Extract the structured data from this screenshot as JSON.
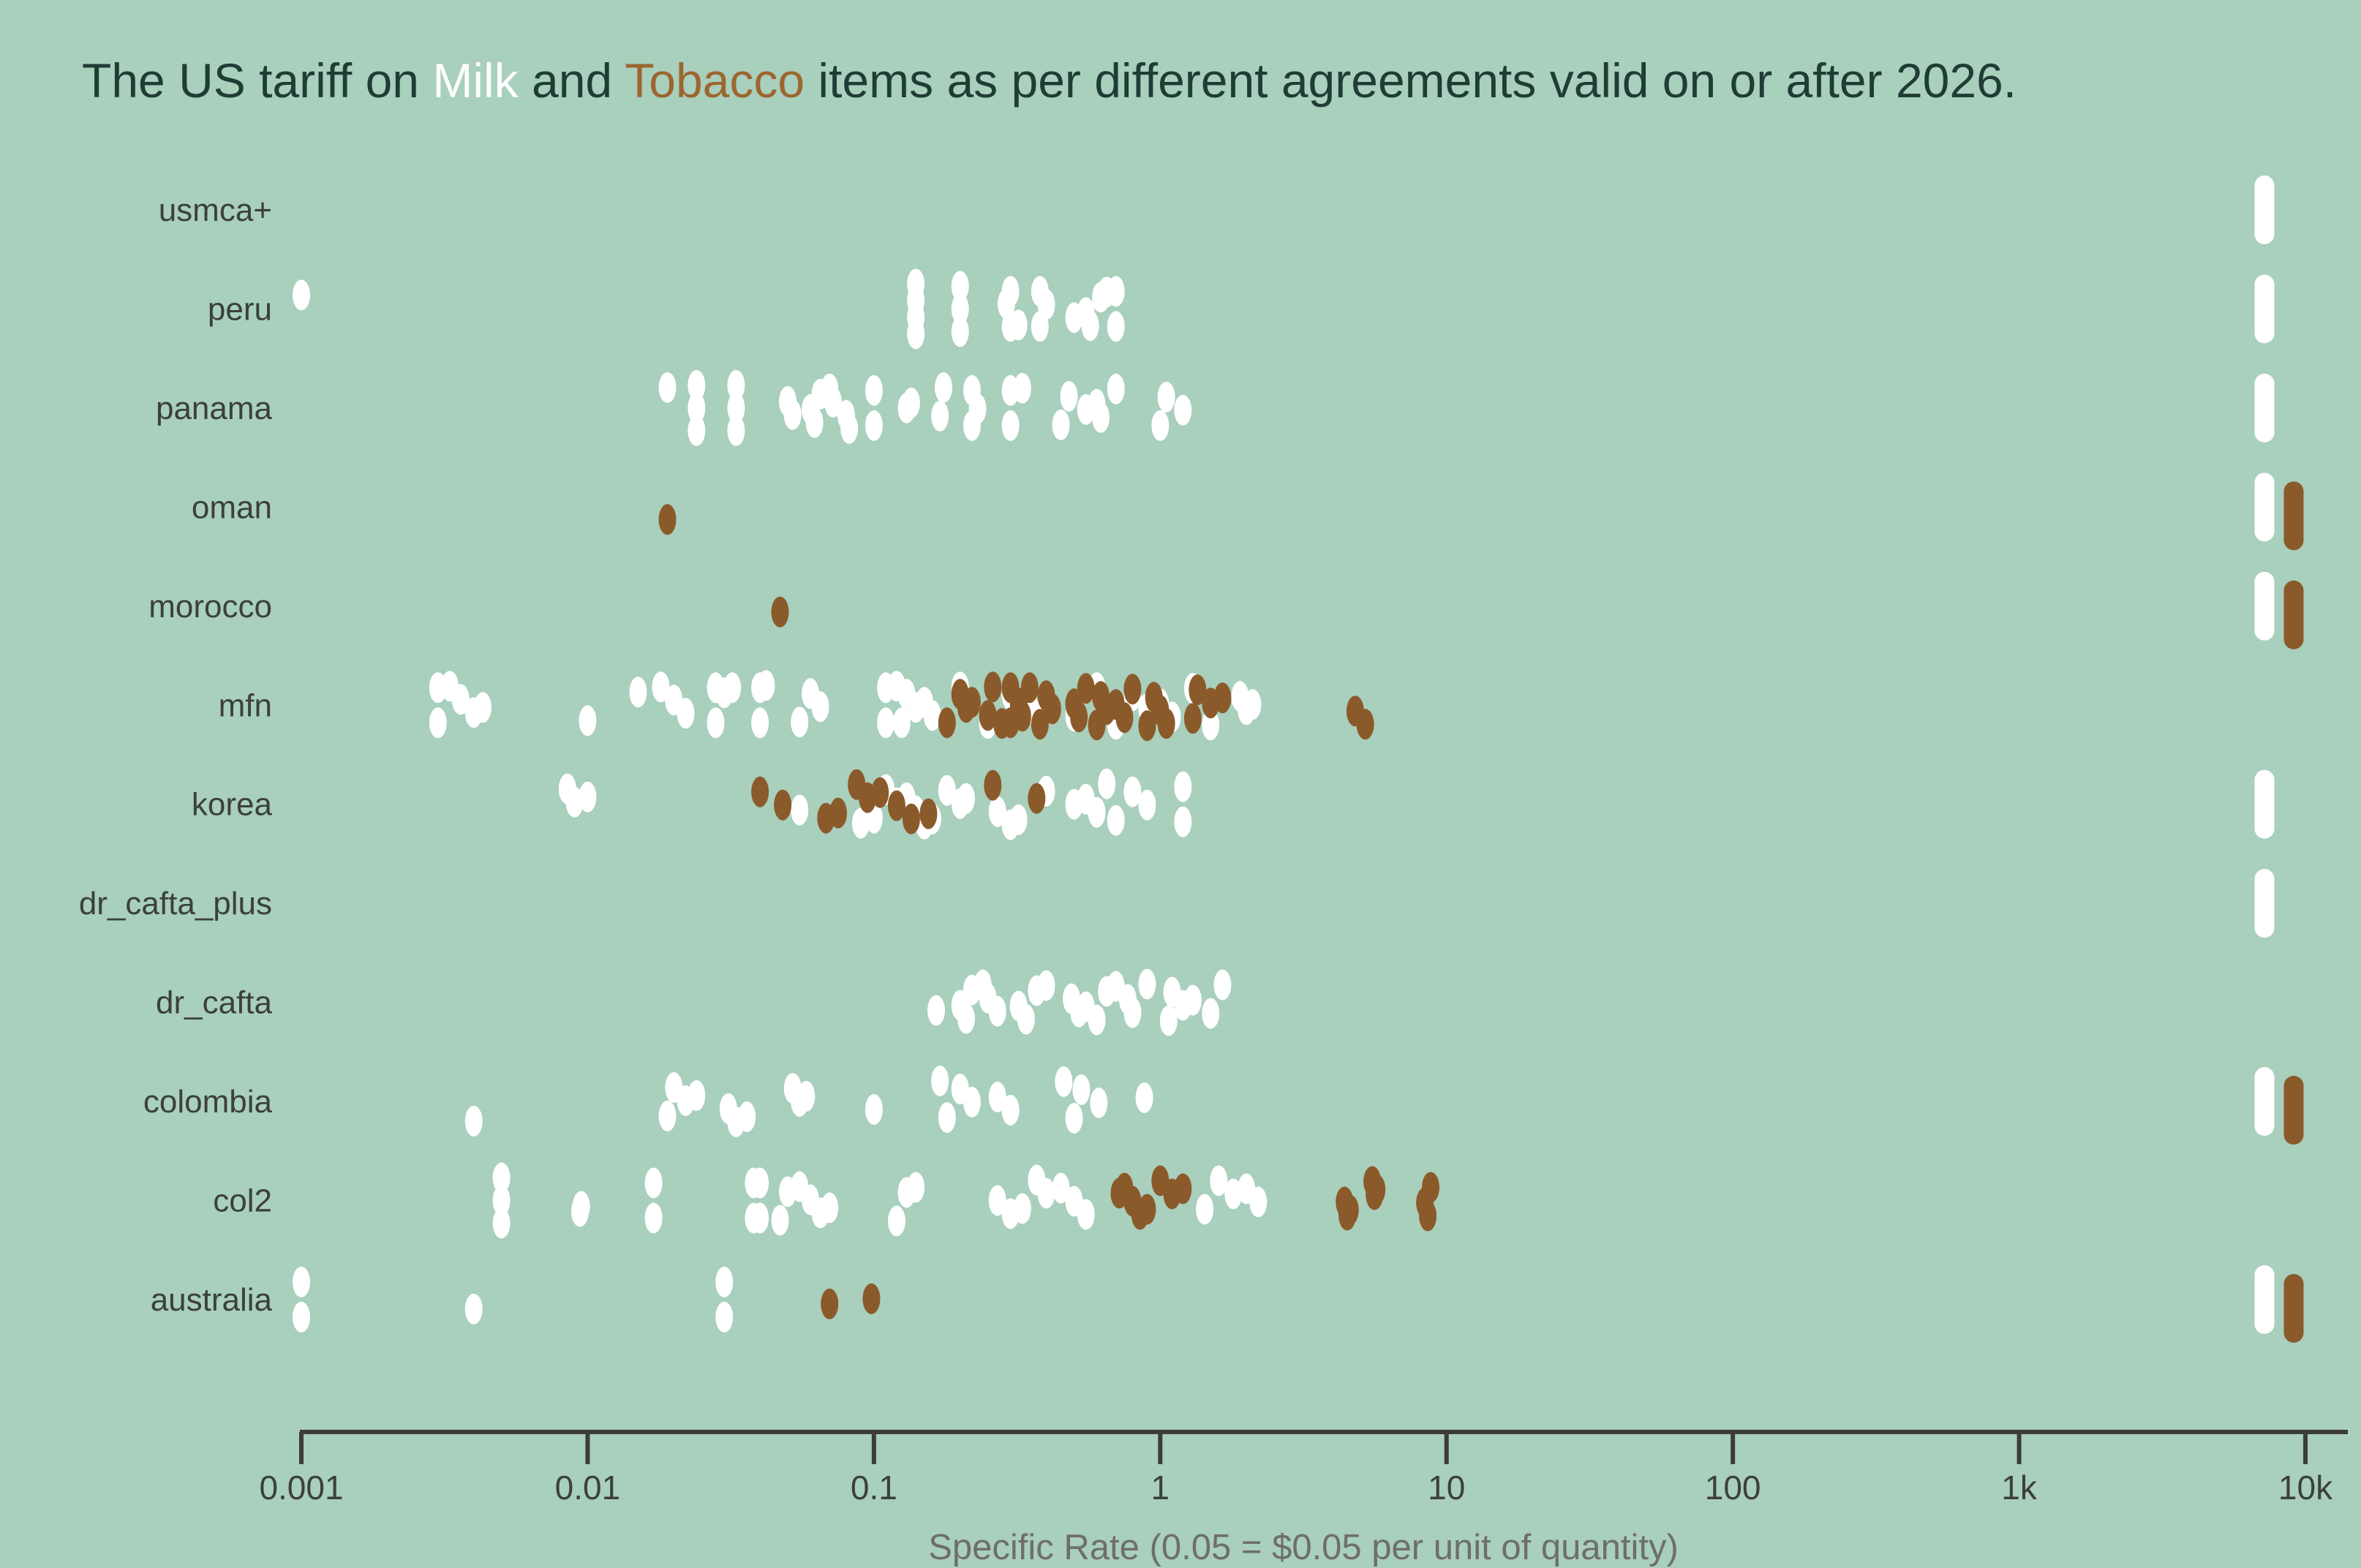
{
  "title": {
    "prefix": "The US tariff on ",
    "milk_word": "Milk",
    "connector": " and ",
    "tobacco_word": "Tobacco",
    "suffix": " items as per different agreements valid on or after 2026."
  },
  "colors": {
    "background": "#A9CFBD",
    "milk": "#FFFFFF",
    "tobacco": "#8B5A2B",
    "tobacco_title_word": "#9C6630",
    "milk_title_word": "#FFFFFF",
    "title_text": "#1F3C35",
    "axis_text": "#3B403D",
    "axis_line": "#3C3C3C",
    "axis_title_text": "#6E6E6E"
  },
  "chart_data": {
    "type": "scatter",
    "subtype": "horizontal_strip_plot",
    "x_scale": "log",
    "title": "The US tariff on Milk and Tobacco items as per different agreements valid on or after 2026.",
    "xlabel": "Specific Rate (0.05 = $0.05 per unit of quantity)",
    "ylabel": "",
    "grid": false,
    "legend_position": "none (series distinguished by color words in title)",
    "series_names": [
      "Milk",
      "Tobacco"
    ],
    "x_tick_values": [
      0.001,
      0.01,
      0.1,
      1,
      10,
      100,
      1000,
      10000
    ],
    "x_tick_labels": [
      "0.001",
      "0.01",
      "0.1",
      "1",
      "10",
      "100",
      "1k",
      "10k"
    ],
    "x_range": [
      0.001,
      13000
    ],
    "cap_note": "Rows flagged *_at_cap have a clipped pill-shaped cluster of many points at the right axis edge (~8000-10000).",
    "cap_value": 10000,
    "rows": [
      {
        "label": "usmca+",
        "milk": [],
        "tobacco": [],
        "milk_at_cap": true,
        "tobacco_at_cap": false
      },
      {
        "label": "peru",
        "milk": [
          0.001,
          0.14,
          0.14,
          0.14,
          0.14,
          0.2,
          0.2,
          0.2,
          0.29,
          0.3,
          0.3,
          0.32,
          0.38,
          0.38,
          0.4,
          0.5,
          0.55,
          0.57,
          0.62,
          0.65,
          0.7,
          0.7
        ],
        "tobacco": [],
        "milk_at_cap": true,
        "tobacco_at_cap": false
      },
      {
        "label": "panama",
        "milk": [
          0.019,
          0.024,
          0.024,
          0.024,
          0.033,
          0.033,
          0.033,
          0.05,
          0.052,
          0.06,
          0.062,
          0.065,
          0.07,
          0.072,
          0.08,
          0.082,
          0.1,
          0.1,
          0.13,
          0.135,
          0.17,
          0.175,
          0.22,
          0.22,
          0.23,
          0.3,
          0.3,
          0.33,
          0.45,
          0.48,
          0.55,
          0.6,
          0.62,
          0.7,
          1.0,
          1.05,
          1.2
        ],
        "tobacco": [],
        "milk_at_cap": true,
        "tobacco_at_cap": false
      },
      {
        "label": "oman",
        "milk": [],
        "tobacco": [
          0.019
        ],
        "milk_at_cap": true,
        "tobacco_at_cap": true
      },
      {
        "label": "morocco",
        "milk": [],
        "tobacco": [
          0.047
        ],
        "milk_at_cap": true,
        "tobacco_at_cap": true
      },
      {
        "label": "mfn",
        "milk": [
          0.003,
          0.003,
          0.0033,
          0.0036,
          0.004,
          0.0043,
          0.01,
          0.015,
          0.018,
          0.02,
          0.022,
          0.028,
          0.028,
          0.03,
          0.032,
          0.04,
          0.04,
          0.042,
          0.055,
          0.06,
          0.065,
          0.11,
          0.11,
          0.12,
          0.125,
          0.13,
          0.14,
          0.15,
          0.16,
          0.2,
          0.25,
          0.3,
          0.35,
          0.4,
          0.5,
          0.6,
          0.7,
          0.8,
          0.9,
          1.0,
          1.1,
          1.3,
          1.5,
          1.9,
          2.0,
          2.1
        ],
        "tobacco": [
          0.18,
          0.2,
          0.21,
          0.22,
          0.25,
          0.26,
          0.28,
          0.3,
          0.3,
          0.32,
          0.33,
          0.35,
          0.38,
          0.4,
          0.42,
          0.5,
          0.52,
          0.55,
          0.6,
          0.62,
          0.65,
          0.7,
          0.75,
          0.8,
          0.9,
          0.95,
          1.0,
          1.05,
          1.3,
          1.35,
          1.5,
          1.65,
          4.8,
          5.2
        ],
        "milk_at_cap": false,
        "tobacco_at_cap": false
      },
      {
        "label": "korea",
        "milk": [
          0.0085,
          0.009,
          0.01,
          0.055,
          0.09,
          0.1,
          0.11,
          0.12,
          0.13,
          0.14,
          0.15,
          0.16,
          0.18,
          0.2,
          0.21,
          0.27,
          0.3,
          0.32,
          0.4,
          0.5,
          0.55,
          0.6,
          0.65,
          0.7,
          0.8,
          0.9,
          1.2,
          1.2
        ],
        "tobacco": [
          0.04,
          0.048,
          0.068,
          0.075,
          0.087,
          0.095,
          0.105,
          0.12,
          0.135,
          0.155,
          0.26,
          0.37
        ],
        "milk_at_cap": true,
        "tobacco_at_cap": false
      },
      {
        "label": "dr_cafta_plus",
        "milk": [],
        "tobacco": [],
        "milk_at_cap": true,
        "tobacco_at_cap": false
      },
      {
        "label": "dr_cafta",
        "milk": [
          0.165,
          0.2,
          0.21,
          0.22,
          0.24,
          0.25,
          0.27,
          0.32,
          0.34,
          0.37,
          0.4,
          0.49,
          0.52,
          0.55,
          0.6,
          0.65,
          0.7,
          0.77,
          0.8,
          0.9,
          1.07,
          1.1,
          1.2,
          1.3,
          1.5,
          1.65
        ],
        "tobacco": [],
        "milk_at_cap": false,
        "tobacco_at_cap": false
      },
      {
        "label": "colombia",
        "milk": [
          0.004,
          0.019,
          0.02,
          0.022,
          0.024,
          0.031,
          0.033,
          0.036,
          0.052,
          0.055,
          0.058,
          0.1,
          0.17,
          0.18,
          0.2,
          0.22,
          0.27,
          0.3,
          0.46,
          0.5,
          0.53,
          0.61,
          0.88
        ],
        "tobacco": [],
        "milk_at_cap": true,
        "tobacco_at_cap": true
      },
      {
        "label": "col2",
        "milk": [
          0.005,
          0.005,
          0.005,
          0.0094,
          0.0095,
          0.017,
          0.017,
          0.038,
          0.038,
          0.04,
          0.04,
          0.047,
          0.05,
          0.055,
          0.06,
          0.065,
          0.07,
          0.12,
          0.13,
          0.14,
          0.27,
          0.3,
          0.33,
          0.37,
          0.4,
          0.45,
          0.5,
          0.55,
          1.43,
          1.6,
          1.8,
          2.0,
          2.2
        ],
        "tobacco": [
          0.72,
          0.75,
          0.8,
          0.85,
          0.9,
          1.0,
          1.1,
          1.2,
          4.4,
          4.5,
          4.6,
          5.5,
          5.6,
          5.7,
          8.4,
          8.6,
          8.8
        ],
        "milk_at_cap": false,
        "tobacco_at_cap": false
      },
      {
        "label": "australia",
        "milk": [
          0.001,
          0.001,
          0.004,
          0.03,
          0.03
        ],
        "tobacco": [
          0.07,
          0.098
        ],
        "milk_at_cap": true,
        "tobacco_at_cap": true
      }
    ]
  }
}
